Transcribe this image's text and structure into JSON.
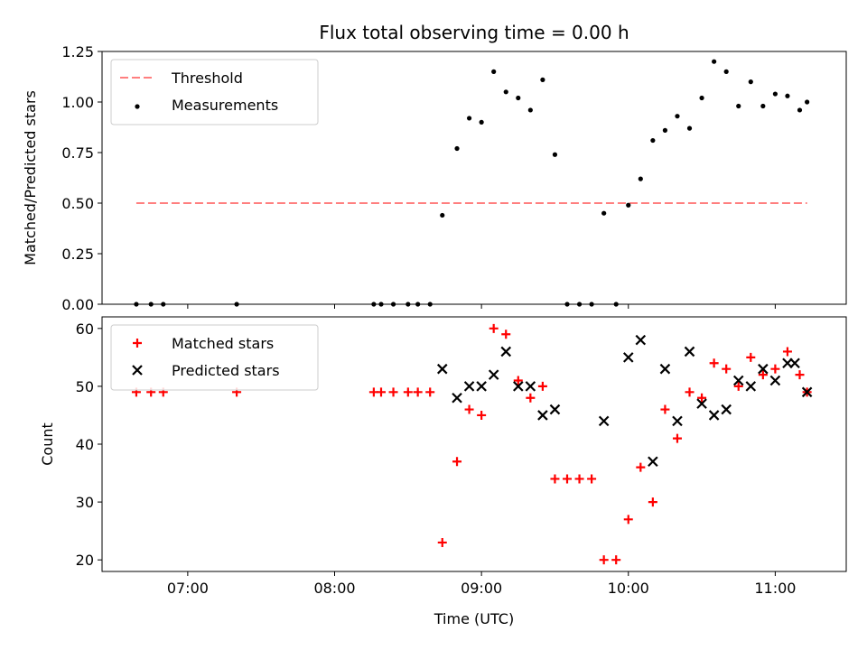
{
  "chart_data": [
    {
      "type": "scatter",
      "title": "Flux total observing time = 0.00 h",
      "xlabel": "",
      "ylabel": "Matched/Predicted stars",
      "ylim": [
        0,
        1.25
      ],
      "yticks": [
        "0.00",
        "0.25",
        "0.50",
        "0.75",
        "1.00",
        "1.25"
      ],
      "ytick_values": [
        0,
        0.25,
        0.5,
        0.75,
        1.0,
        1.25
      ],
      "legend_position": "top-left",
      "threshold": {
        "name": "Threshold",
        "value": 0.5,
        "x_start": "06:39",
        "x_end": "11:13",
        "color": "#ff7f7f"
      },
      "series": [
        {
          "name": "Measurements",
          "color": "#000000",
          "marker": "dot",
          "points": [
            [
              "06:39",
              0
            ],
            [
              "06:45",
              0
            ],
            [
              "06:50",
              0
            ],
            [
              "07:20",
              0
            ],
            [
              "08:16",
              0
            ],
            [
              "08:19",
              0
            ],
            [
              "08:24",
              0
            ],
            [
              "08:30",
              0
            ],
            [
              "08:34",
              0
            ],
            [
              "08:39",
              0
            ],
            [
              "08:44",
              0.44
            ],
            [
              "08:50",
              0.77
            ],
            [
              "08:55",
              0.92
            ],
            [
              "09:00",
              0.9
            ],
            [
              "09:05",
              1.15
            ],
            [
              "09:10",
              1.05
            ],
            [
              "09:15",
              1.02
            ],
            [
              "09:20",
              0.96
            ],
            [
              "09:25",
              1.11
            ],
            [
              "09:30",
              0.74
            ],
            [
              "09:35",
              0
            ],
            [
              "09:40",
              0
            ],
            [
              "09:45",
              0
            ],
            [
              "09:50",
              0.45
            ],
            [
              "09:55",
              0
            ],
            [
              "10:00",
              0.49
            ],
            [
              "10:05",
              0.62
            ],
            [
              "10:10",
              0.81
            ],
            [
              "10:15",
              0.86
            ],
            [
              "10:20",
              0.93
            ],
            [
              "10:25",
              0.87
            ],
            [
              "10:30",
              1.02
            ],
            [
              "10:35",
              1.2
            ],
            [
              "10:40",
              1.15
            ],
            [
              "10:45",
              0.98
            ],
            [
              "10:50",
              1.1
            ],
            [
              "10:55",
              0.98
            ],
            [
              "11:00",
              1.04
            ],
            [
              "11:05",
              1.03
            ],
            [
              "11:10",
              0.96
            ],
            [
              "11:13",
              1.0
            ]
          ]
        }
      ]
    },
    {
      "type": "scatter",
      "title": "",
      "xlabel": "Time (UTC)",
      "ylabel": "Count",
      "ylim": [
        18,
        62
      ],
      "yticks": [
        "20",
        "30",
        "40",
        "50",
        "60"
      ],
      "ytick_values": [
        20,
        30,
        40,
        50,
        60
      ],
      "xlim": [
        "06:25",
        "11:29"
      ],
      "xticks": [
        "07:00",
        "08:00",
        "09:00",
        "10:00",
        "11:00"
      ],
      "legend_position": "top-left",
      "series": [
        {
          "name": "Matched stars",
          "color": "#ff0000",
          "marker": "plus",
          "points": [
            [
              "06:39",
              49
            ],
            [
              "06:45",
              49
            ],
            [
              "06:50",
              49
            ],
            [
              "07:20",
              49
            ],
            [
              "08:16",
              49
            ],
            [
              "08:19",
              49
            ],
            [
              "08:24",
              49
            ],
            [
              "08:30",
              49
            ],
            [
              "08:34",
              49
            ],
            [
              "08:39",
              49
            ],
            [
              "08:44",
              23
            ],
            [
              "08:50",
              37
            ],
            [
              "08:55",
              46
            ],
            [
              "09:00",
              45
            ],
            [
              "09:05",
              60
            ],
            [
              "09:10",
              59
            ],
            [
              "09:15",
              51
            ],
            [
              "09:20",
              48
            ],
            [
              "09:25",
              50
            ],
            [
              "09:30",
              34
            ],
            [
              "09:35",
              34
            ],
            [
              "09:40",
              34
            ],
            [
              "09:45",
              34
            ],
            [
              "09:50",
              20
            ],
            [
              "09:55",
              20
            ],
            [
              "10:00",
              27
            ],
            [
              "10:05",
              36
            ],
            [
              "10:10",
              30
            ],
            [
              "10:15",
              46
            ],
            [
              "10:20",
              41
            ],
            [
              "10:25",
              49
            ],
            [
              "10:30",
              48
            ],
            [
              "10:35",
              54
            ],
            [
              "10:40",
              53
            ],
            [
              "10:45",
              50
            ],
            [
              "10:50",
              55
            ],
            [
              "10:55",
              52
            ],
            [
              "11:00",
              53
            ],
            [
              "11:05",
              56
            ],
            [
              "11:10",
              52
            ],
            [
              "11:13",
              49
            ]
          ]
        },
        {
          "name": "Predicted stars",
          "color": "#000000",
          "marker": "x",
          "points": [
            [
              "08:44",
              53
            ],
            [
              "08:50",
              48
            ],
            [
              "08:55",
              50
            ],
            [
              "09:00",
              50
            ],
            [
              "09:05",
              52
            ],
            [
              "09:10",
              56
            ],
            [
              "09:15",
              50
            ],
            [
              "09:20",
              50
            ],
            [
              "09:25",
              45
            ],
            [
              "09:30",
              46
            ],
            [
              "09:50",
              44
            ],
            [
              "10:00",
              55
            ],
            [
              "10:05",
              58
            ],
            [
              "10:10",
              37
            ],
            [
              "10:15",
              53
            ],
            [
              "10:20",
              44
            ],
            [
              "10:25",
              56
            ],
            [
              "10:30",
              47
            ],
            [
              "10:35",
              45
            ],
            [
              "10:40",
              46
            ],
            [
              "10:45",
              51
            ],
            [
              "10:50",
              50
            ],
            [
              "10:55",
              53
            ],
            [
              "11:00",
              51
            ],
            [
              "11:05",
              54
            ],
            [
              "11:08",
              54
            ],
            [
              "11:13",
              49
            ]
          ]
        }
      ]
    }
  ]
}
